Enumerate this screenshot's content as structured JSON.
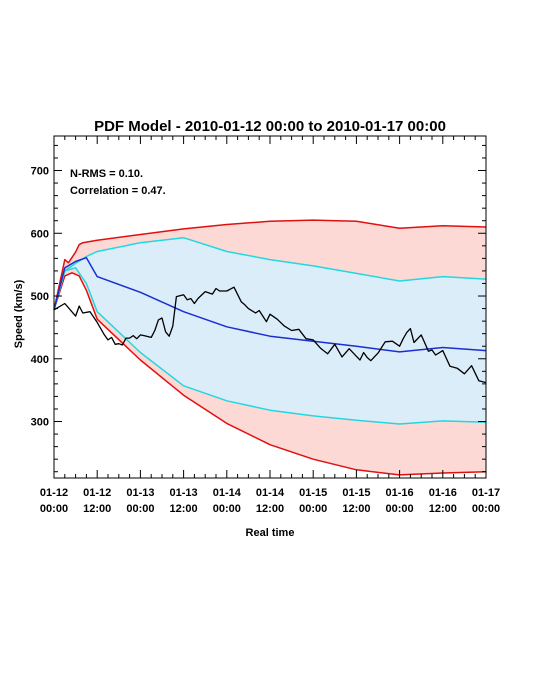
{
  "chart_data": {
    "type": "area",
    "title": "PDF Model - 2010-01-12 00:00 to 2010-01-17 00:00",
    "xlabel": "Real time",
    "ylabel": "Speed (km/s)",
    "xlim": [
      "2010-01-12T00:00",
      "2010-01-17T00:00"
    ],
    "ylim": [
      210,
      755
    ],
    "x_ticks": [
      {
        "line1": "01-12",
        "line2": "00:00",
        "t": "2010-01-12T00:00"
      },
      {
        "line1": "01-12",
        "line2": "12:00",
        "t": "2010-01-12T12:00"
      },
      {
        "line1": "01-13",
        "line2": "00:00",
        "t": "2010-01-13T00:00"
      },
      {
        "line1": "01-13",
        "line2": "12:00",
        "t": "2010-01-13T12:00"
      },
      {
        "line1": "01-14",
        "line2": "00:00",
        "t": "2010-01-14T00:00"
      },
      {
        "line1": "01-14",
        "line2": "12:00",
        "t": "2010-01-14T12:00"
      },
      {
        "line1": "01-15",
        "line2": "00:00",
        "t": "2010-01-15T00:00"
      },
      {
        "line1": "01-15",
        "line2": "12:00",
        "t": "2010-01-15T12:00"
      },
      {
        "line1": "01-16",
        "line2": "00:00",
        "t": "2010-01-16T00:00"
      },
      {
        "line1": "01-16",
        "line2": "12:00",
        "t": "2010-01-16T12:00"
      },
      {
        "line1": "01-17",
        "line2": "00:00",
        "t": "2010-01-17T00:00"
      }
    ],
    "y_ticks": [
      300,
      400,
      500,
      600,
      700
    ],
    "annotations": [
      "N-RMS = 0.10.",
      "Correlation = 0.47."
    ],
    "colors": {
      "outer_band_fill": "#fdd9d6",
      "inner_band_fill": "#dcedfa",
      "outer_line": "#e01010",
      "inner_line": "#22d8e0",
      "median_line": "#1a2fd0",
      "observed_line": "#000000"
    },
    "series": [
      {
        "role": "outer_upper",
        "x": [
          "2010-01-12T00:00",
          "2010-01-12T03:00",
          "2010-01-12T04:00",
          "2010-01-12T06:00",
          "2010-01-12T07:00",
          "2010-01-12T08:00",
          "2010-01-12T09:00",
          "2010-01-12T12:00",
          "2010-01-13T00:00",
          "2010-01-13T12:00",
          "2010-01-14T00:00",
          "2010-01-14T12:00",
          "2010-01-15T00:00",
          "2010-01-15T12:00",
          "2010-01-16T00:00",
          "2010-01-16T12:00",
          "2010-01-17T00:00"
        ],
        "y": [
          478,
          558,
          553,
          570,
          582,
          585,
          586,
          589,
          598,
          607,
          614,
          619,
          621,
          619,
          608,
          612,
          610
        ]
      },
      {
        "role": "inner_upper",
        "x": [
          "2010-01-12T00:00",
          "2010-01-12T03:00",
          "2010-01-12T06:00",
          "2010-01-12T09:00",
          "2010-01-12T12:00",
          "2010-01-13T00:00",
          "2010-01-13T12:00",
          "2010-01-14T00:00",
          "2010-01-14T12:00",
          "2010-01-15T00:00",
          "2010-01-15T12:00",
          "2010-01-16T00:00",
          "2010-01-16T12:00",
          "2010-01-17T00:00"
        ],
        "y": [
          478,
          540,
          552,
          563,
          571,
          585,
          593,
          571,
          558,
          548,
          536,
          524,
          531,
          527
        ]
      },
      {
        "role": "median",
        "x": [
          "2010-01-12T00:00",
          "2010-01-12T03:00",
          "2010-01-12T06:00",
          "2010-01-12T09:00",
          "2010-01-12T12:00",
          "2010-01-13T00:00",
          "2010-01-13T12:00",
          "2010-01-14T00:00",
          "2010-01-14T12:00",
          "2010-01-15T00:00",
          "2010-01-15T12:00",
          "2010-01-16T00:00",
          "2010-01-16T12:00",
          "2010-01-17T00:00"
        ],
        "y": [
          478,
          545,
          555,
          561,
          531,
          506,
          475,
          451,
          436,
          428,
          420,
          411,
          418,
          413
        ]
      },
      {
        "role": "inner_lower",
        "x": [
          "2010-01-12T00:00",
          "2010-01-12T03:00",
          "2010-01-12T06:00",
          "2010-01-12T09:00",
          "2010-01-12T12:00",
          "2010-01-13T00:00",
          "2010-01-13T12:00",
          "2010-01-14T00:00",
          "2010-01-14T12:00",
          "2010-01-15T00:00",
          "2010-01-15T12:00",
          "2010-01-16T00:00",
          "2010-01-16T12:00",
          "2010-01-17T00:00"
        ],
        "y": [
          478,
          540,
          545,
          520,
          475,
          410,
          357,
          333,
          318,
          309,
          302,
          296,
          301,
          299
        ]
      },
      {
        "role": "outer_lower",
        "x": [
          "2010-01-12T00:00",
          "2010-01-12T03:00",
          "2010-01-12T05:00",
          "2010-01-12T07:00",
          "2010-01-12T09:00",
          "2010-01-12T12:00",
          "2010-01-13T00:00",
          "2010-01-13T12:00",
          "2010-01-14T00:00",
          "2010-01-14T12:00",
          "2010-01-15T00:00",
          "2010-01-15T12:00",
          "2010-01-16T00:00",
          "2010-01-16T12:00",
          "2010-01-17T00:00"
        ],
        "y": [
          478,
          532,
          537,
          532,
          509,
          463,
          398,
          342,
          297,
          263,
          240,
          223,
          215,
          218,
          220
        ]
      },
      {
        "role": "observed",
        "x": [
          "2010-01-12T00:00",
          "2010-01-12T03:00",
          "2010-01-12T06:00",
          "2010-01-12T07:00",
          "2010-01-12T08:00",
          "2010-01-12T10:00",
          "2010-01-12T12:00",
          "2010-01-12T14:00",
          "2010-01-12T15:00",
          "2010-01-12T16:00",
          "2010-01-12T17:00",
          "2010-01-12T18:00",
          "2010-01-12T19:00",
          "2010-01-12T20:00",
          "2010-01-12T21:00",
          "2010-01-12T22:00",
          "2010-01-12T23:00",
          "2010-01-13T00:00",
          "2010-01-13T01:00",
          "2010-01-13T03:00",
          "2010-01-13T04:00",
          "2010-01-13T05:00",
          "2010-01-13T06:00",
          "2010-01-13T07:00",
          "2010-01-13T08:00",
          "2010-01-13T09:00",
          "2010-01-13T10:00",
          "2010-01-13T12:00",
          "2010-01-13T13:00",
          "2010-01-13T14:00",
          "2010-01-13T15:00",
          "2010-01-13T16:00",
          "2010-01-13T18:00",
          "2010-01-13T20:00",
          "2010-01-13T21:00",
          "2010-01-13T22:00",
          "2010-01-14T00:00",
          "2010-01-14T02:00",
          "2010-01-14T04:00",
          "2010-01-14T05:00",
          "2010-01-14T06:00",
          "2010-01-14T08:00",
          "2010-01-14T09:00",
          "2010-01-14T11:00",
          "2010-01-14T12:00",
          "2010-01-14T14:00",
          "2010-01-14T16:00",
          "2010-01-14T18:00",
          "2010-01-14T20:00",
          "2010-01-14T22:00",
          "2010-01-15T00:00",
          "2010-01-15T02:00",
          "2010-01-15T04:00",
          "2010-01-15T06:00",
          "2010-01-15T08:00",
          "2010-01-15T10:00",
          "2010-01-15T12:00",
          "2010-01-15T13:00",
          "2010-01-15T14:00",
          "2010-01-15T15:00",
          "2010-01-15T16:00",
          "2010-01-15T18:00",
          "2010-01-15T20:00",
          "2010-01-15T22:00",
          "2010-01-16T00:00",
          "2010-01-16T01:00",
          "2010-01-16T02:00",
          "2010-01-16T03:00",
          "2010-01-16T04:00",
          "2010-01-16T06:00",
          "2010-01-16T08:00",
          "2010-01-16T09:00",
          "2010-01-16T10:00",
          "2010-01-16T12:00",
          "2010-01-16T14:00",
          "2010-01-16T16:00",
          "2010-01-16T18:00",
          "2010-01-16T20:00",
          "2010-01-16T22:00",
          "2010-01-17T00:00"
        ],
        "y": [
          478,
          488,
          468,
          484,
          473,
          475,
          458,
          438,
          430,
          434,
          423,
          424,
          422,
          433,
          433,
          437,
          432,
          438,
          437,
          434,
          445,
          462,
          465,
          443,
          436,
          452,
          499,
          502,
          494,
          496,
          488,
          496,
          507,
          503,
          512,
          508,
          508,
          514,
          491,
          486,
          480,
          473,
          477,
          459,
          471,
          463,
          452,
          445,
          447,
          432,
          430,
          417,
          408,
          423,
          403,
          416,
          404,
          398,
          410,
          402,
          397,
          409,
          427,
          428,
          420,
          432,
          442,
          448,
          426,
          438,
          412,
          414,
          406,
          413,
          388,
          385,
          376,
          389,
          365,
          362
        ]
      }
    ]
  }
}
